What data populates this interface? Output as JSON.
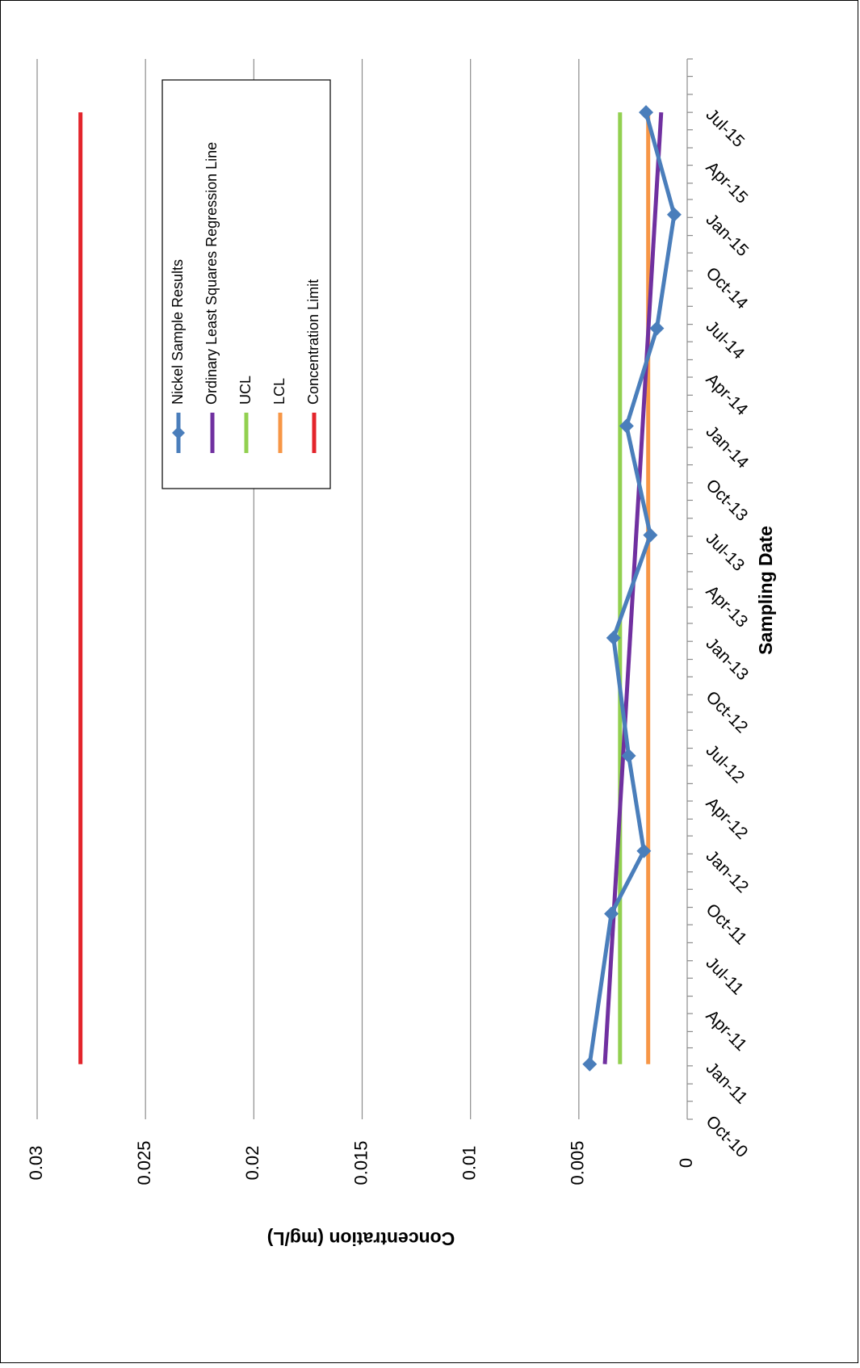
{
  "chart_data": {
    "type": "line",
    "orientation": "rotated-90-ccw",
    "xlabel": "Sampling Date",
    "ylabel": "Concentration (mg/L)",
    "y_axis": {
      "ticks": [
        0,
        0.005,
        0.01,
        0.015,
        0.02,
        0.025,
        0.03
      ],
      "tick_labels": [
        "0",
        "0.005",
        "0.01",
        "0.015",
        "0.02",
        "0.025",
        "0.03"
      ],
      "range": [
        0,
        0.03
      ],
      "gridlines": true
    },
    "x_axis": {
      "type": "date",
      "range": [
        "2010-10-01",
        "2015-10-01"
      ],
      "ticks": [
        "2010-10-01",
        "2011-01-01",
        "2011-04-01",
        "2011-07-01",
        "2011-10-01",
        "2012-01-01",
        "2012-04-01",
        "2012-07-01",
        "2012-10-01",
        "2013-01-01",
        "2013-04-01",
        "2013-07-01",
        "2013-10-01",
        "2014-01-01",
        "2014-04-01",
        "2014-07-01",
        "2014-10-01",
        "2015-01-01",
        "2015-04-01",
        "2015-07-01"
      ],
      "tick_labels": [
        "Oct-10",
        "Jan-11",
        "Apr-11",
        "Jul-11",
        "Oct-11",
        "Jan-12",
        "Apr-12",
        "Jul-12",
        "Oct-12",
        "Jan-13",
        "Apr-13",
        "Jul-13",
        "Oct-13",
        "Jan-14",
        "Apr-14",
        "Jul-14",
        "Oct-14",
        "Jan-15",
        "Apr-15",
        "Jul-15"
      ]
    },
    "legend_position": "inside",
    "series": [
      {
        "name": "Nickel Sample Results",
        "color": "#4a7ebb",
        "marker": "diamond",
        "x": [
          "2011-01-04",
          "2011-09-20",
          "2012-01-06",
          "2012-06-18",
          "2013-01-07",
          "2013-07-03",
          "2014-01-07",
          "2014-06-24",
          "2015-01-06",
          "2015-07-01"
        ],
        "y": [
          0.0045,
          0.0035,
          0.002,
          0.0027,
          0.0034,
          0.0017,
          0.0028,
          0.0014,
          0.0006,
          0.0019
        ]
      },
      {
        "name": "Ordinary Least Squares Regression Line",
        "color": "#7030a0",
        "x": [
          "2011-01-04",
          "2015-07-01"
        ],
        "y": [
          0.0038,
          0.0012
        ]
      },
      {
        "name": "UCL",
        "color": "#92d050",
        "x": [
          "2011-01-04",
          "2015-07-01"
        ],
        "y": [
          0.0031,
          0.0031
        ]
      },
      {
        "name": "LCL",
        "color": "#f79646",
        "x": [
          "2011-01-04",
          "2015-07-01"
        ],
        "y": [
          0.0018,
          0.0018
        ]
      },
      {
        "name": "Concentration Limit",
        "color": "#e3242b",
        "x": [
          "2011-01-04",
          "2015-07-01"
        ],
        "y": [
          0.028,
          0.028
        ]
      }
    ]
  }
}
